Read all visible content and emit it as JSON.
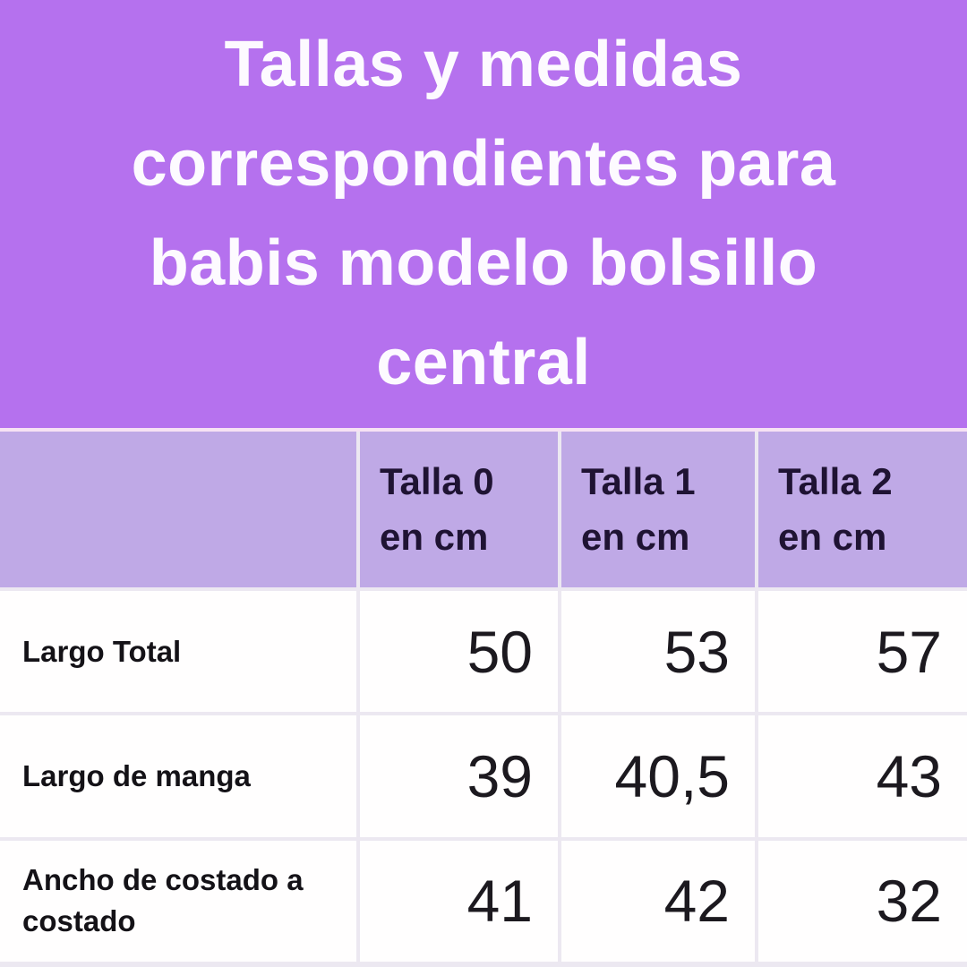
{
  "title": "Tallas y medidas correspondientes para babis modelo bolsillo central",
  "title_lines": [
    "Tallas y medidas",
    "correspondientes para",
    "babis modelo bolsillo",
    "central"
  ],
  "table": {
    "columns": [
      {
        "line1": "Talla 0",
        "line2": "en cm"
      },
      {
        "line1": "Talla 1",
        "line2": "en cm"
      },
      {
        "line1": "Talla 2",
        "line2": "en cm"
      }
    ],
    "rows": [
      {
        "label": "Largo Total",
        "values": [
          "50",
          "53",
          "57"
        ]
      },
      {
        "label": "Largo de manga",
        "values": [
          "39",
          "40,5",
          "43"
        ]
      },
      {
        "label": "Ancho de costado a costado",
        "values": [
          "41",
          "42",
          "32"
        ]
      }
    ],
    "unit": "cm"
  },
  "colors": {
    "title_background": "#b571ee",
    "title_text": "#fdfaff",
    "header_background": "#bfa9e6",
    "header_text": "#1f1333",
    "cell_background": "#fffefe",
    "label_text": "#141217",
    "value_text": "#1c191f",
    "separator": "#ece8f1",
    "title_separator": "#f6e2f4"
  }
}
